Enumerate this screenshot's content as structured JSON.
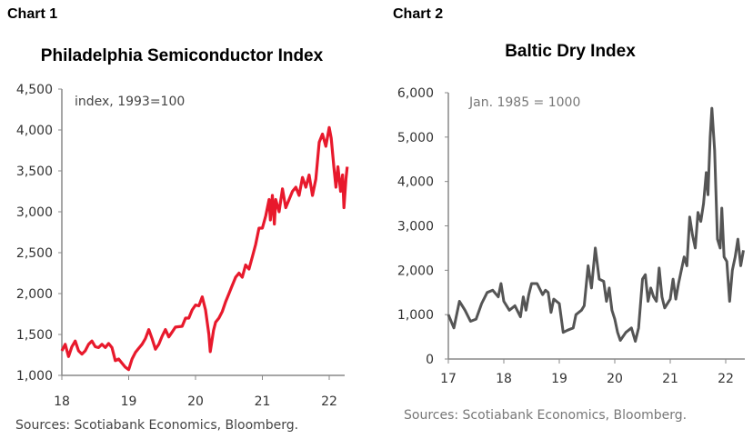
{
  "chart_data": [
    {
      "type": "line",
      "label": "Chart 1",
      "title": "Philadelphia Semiconductor Index",
      "annotation": "index, 1993=100",
      "source": "Sources: Scotiabank Economics, Bloomberg.",
      "xlabel": "",
      "ylabel": "",
      "xlim": [
        18,
        22.35
      ],
      "ylim": [
        1000,
        4500
      ],
      "xticks": [
        18,
        19,
        20,
        21,
        22
      ],
      "xtick_labels": [
        "18",
        "19",
        "20",
        "21",
        "22"
      ],
      "yticks": [
        1000,
        1500,
        2000,
        2500,
        3000,
        3500,
        4000,
        4500
      ],
      "ytick_labels": [
        "1,000",
        "1,500",
        "2,000",
        "2,500",
        "3,000",
        "3,500",
        "4,000",
        "4,500"
      ],
      "grid": false,
      "color": "#e8192c",
      "series": [
        {
          "name": "Philadelphia Semiconductor Index",
          "x": [
            18.0,
            18.05,
            18.1,
            18.15,
            18.2,
            18.25,
            18.3,
            18.35,
            18.4,
            18.45,
            18.5,
            18.55,
            18.6,
            18.65,
            18.7,
            18.75,
            18.8,
            18.85,
            18.9,
            18.95,
            19.0,
            19.05,
            19.1,
            19.15,
            19.2,
            19.25,
            19.3,
            19.35,
            19.4,
            19.45,
            19.5,
            19.55,
            19.6,
            19.65,
            19.7,
            19.8,
            19.85,
            19.9,
            19.95,
            20.0,
            20.05,
            20.1,
            20.15,
            20.2,
            20.22,
            20.27,
            20.3,
            20.35,
            20.4,
            20.45,
            20.5,
            20.55,
            20.6,
            20.65,
            20.7,
            20.75,
            20.8,
            20.85,
            20.9,
            20.95,
            21.0,
            21.05,
            21.1,
            21.12,
            21.15,
            21.18,
            21.2,
            21.25,
            21.3,
            21.35,
            21.4,
            21.45,
            21.5,
            21.55,
            21.6,
            21.65,
            21.7,
            21.75,
            21.8,
            21.85,
            21.9,
            21.95,
            22.0,
            22.03,
            22.07,
            22.1,
            22.13,
            22.17,
            22.2,
            22.22,
            22.25,
            22.27
          ],
          "y": [
            1300,
            1380,
            1230,
            1350,
            1420,
            1300,
            1260,
            1300,
            1380,
            1420,
            1350,
            1340,
            1380,
            1340,
            1390,
            1340,
            1180,
            1200,
            1150,
            1100,
            1070,
            1200,
            1280,
            1330,
            1380,
            1450,
            1560,
            1450,
            1320,
            1380,
            1480,
            1560,
            1470,
            1530,
            1590,
            1600,
            1700,
            1700,
            1800,
            1860,
            1850,
            1960,
            1800,
            1500,
            1290,
            1550,
            1650,
            1700,
            1780,
            1900,
            2000,
            2100,
            2200,
            2250,
            2200,
            2350,
            2300,
            2450,
            2600,
            2800,
            2800,
            2950,
            3150,
            2900,
            3200,
            2850,
            3150,
            3000,
            3280,
            3050,
            3150,
            3250,
            3300,
            3200,
            3420,
            3300,
            3450,
            3200,
            3400,
            3850,
            3950,
            3800,
            4030,
            3900,
            3550,
            3300,
            3550,
            3250,
            3450,
            3050,
            3400,
            3550
          ]
        }
      ]
    },
    {
      "type": "line",
      "label": "Chart 2",
      "title": "Baltic Dry Index",
      "annotation": "Jan. 1985 = 1000",
      "source": "Sources: Scotiabank Economics, Bloomberg.",
      "xlabel": "",
      "ylabel": "",
      "xlim": [
        17,
        22.35
      ],
      "ylim": [
        0,
        6000
      ],
      "xticks": [
        17,
        18,
        19,
        20,
        21,
        22
      ],
      "xtick_labels": [
        "17",
        "18",
        "19",
        "20",
        "21",
        "22"
      ],
      "yticks": [
        0,
        1000,
        2000,
        3000,
        4000,
        5000,
        6000
      ],
      "ytick_labels": [
        "0",
        "1,000",
        "2,000",
        "3,000",
        "4,000",
        "5,000",
        "6,000"
      ],
      "grid": false,
      "color": "#555555",
      "series": [
        {
          "name": "Baltic Dry Index",
          "x": [
            17.0,
            17.1,
            17.2,
            17.3,
            17.4,
            17.5,
            17.6,
            17.7,
            17.8,
            17.9,
            17.95,
            18.0,
            18.1,
            18.2,
            18.3,
            18.35,
            18.4,
            18.45,
            18.5,
            18.6,
            18.7,
            18.75,
            18.8,
            18.85,
            18.9,
            19.0,
            19.07,
            19.15,
            19.25,
            19.3,
            19.4,
            19.45,
            19.52,
            19.58,
            19.65,
            19.72,
            19.8,
            19.85,
            19.9,
            19.95,
            20.0,
            20.05,
            20.1,
            20.2,
            20.3,
            20.37,
            20.43,
            20.5,
            20.55,
            20.6,
            20.65,
            20.7,
            20.75,
            20.8,
            20.85,
            20.9,
            21.0,
            21.05,
            21.1,
            21.15,
            21.2,
            21.25,
            21.3,
            21.35,
            21.4,
            21.45,
            21.5,
            21.55,
            21.6,
            21.65,
            21.68,
            21.72,
            21.75,
            21.8,
            21.85,
            21.9,
            21.93,
            21.97,
            22.02,
            22.07,
            22.12,
            22.17,
            22.22,
            22.27,
            22.32
          ],
          "y": [
            1000,
            700,
            1300,
            1100,
            850,
            900,
            1250,
            1500,
            1550,
            1400,
            1700,
            1300,
            1100,
            1200,
            950,
            1400,
            1100,
            1450,
            1700,
            1700,
            1450,
            1550,
            1500,
            1050,
            1350,
            1250,
            600,
            650,
            700,
            1000,
            1100,
            1200,
            2100,
            1600,
            2500,
            1800,
            1750,
            1300,
            1600,
            1100,
            900,
            600,
            420,
            600,
            700,
            400,
            700,
            1800,
            1900,
            1300,
            1600,
            1400,
            1300,
            2050,
            1400,
            1150,
            1350,
            1800,
            1350,
            1700,
            2000,
            2300,
            2100,
            3200,
            2800,
            2500,
            3300,
            3100,
            3500,
            4200,
            3700,
            5000,
            5650,
            4700,
            2700,
            2500,
            3400,
            2300,
            2200,
            1300,
            2000,
            2300,
            2700,
            2100,
            2450
          ]
        }
      ]
    }
  ]
}
